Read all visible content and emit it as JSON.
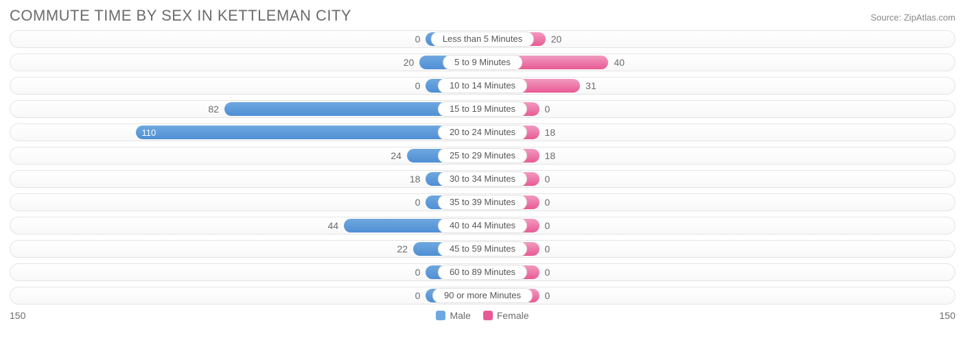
{
  "title": "COMMUTE TIME BY SEX IN KETTLEMAN CITY",
  "source": "Source: ZipAtlas.com",
  "chart": {
    "type": "diverging-bar",
    "axis_max": 150,
    "axis_left_label": "150",
    "axis_right_label": "150",
    "min_bar_pct": 12,
    "background_color": "#ffffff",
    "track_border_color": "#e4e4e4",
    "label_border_color": "#e0e0e0",
    "text_color": "#6b6b6b",
    "series": {
      "male": {
        "label": "Male",
        "color": "#6fa8e0",
        "color_dark": "#4f8fd4"
      },
      "female": {
        "label": "Female",
        "color": "#f29ac0",
        "color_dark": "#e85a94"
      }
    },
    "rows": [
      {
        "category": "Less than 5 Minutes",
        "male": 0,
        "female": 20
      },
      {
        "category": "5 to 9 Minutes",
        "male": 20,
        "female": 40
      },
      {
        "category": "10 to 14 Minutes",
        "male": 0,
        "female": 31
      },
      {
        "category": "15 to 19 Minutes",
        "male": 82,
        "female": 0
      },
      {
        "category": "20 to 24 Minutes",
        "male": 110,
        "female": 18
      },
      {
        "category": "25 to 29 Minutes",
        "male": 24,
        "female": 18
      },
      {
        "category": "30 to 34 Minutes",
        "male": 18,
        "female": 0
      },
      {
        "category": "35 to 39 Minutes",
        "male": 0,
        "female": 0
      },
      {
        "category": "40 to 44 Minutes",
        "male": 44,
        "female": 0
      },
      {
        "category": "45 to 59 Minutes",
        "male": 22,
        "female": 0
      },
      {
        "category": "60 to 89 Minutes",
        "male": 0,
        "female": 0
      },
      {
        "category": "90 or more Minutes",
        "male": 0,
        "female": 0
      }
    ]
  }
}
